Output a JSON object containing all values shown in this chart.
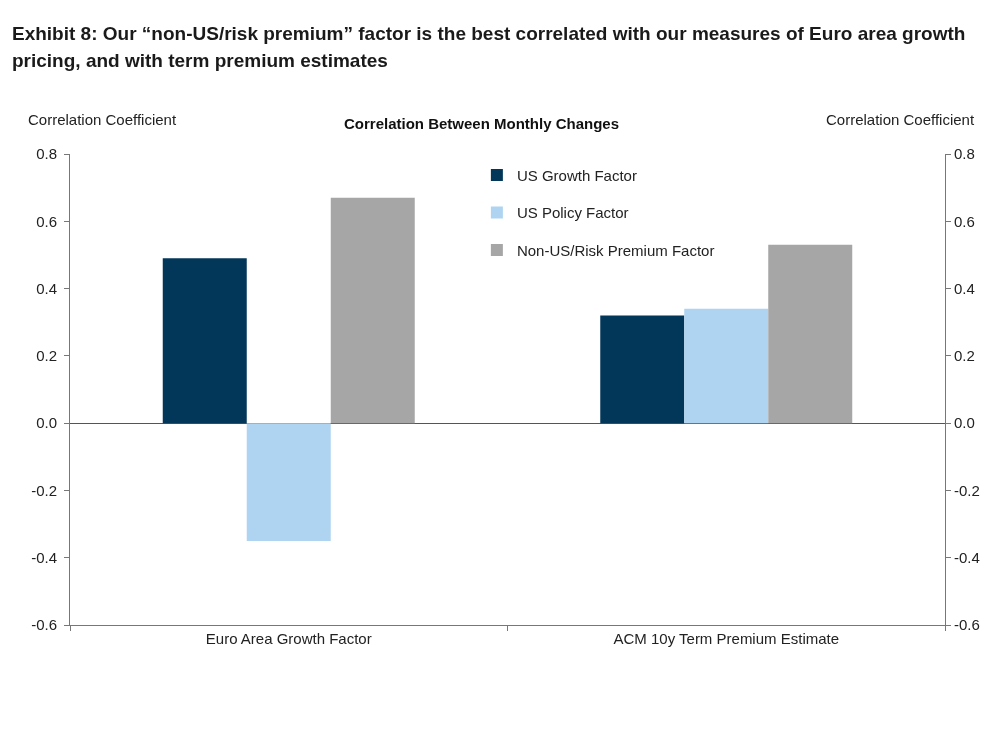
{
  "chart_data": {
    "type": "bar",
    "title": "Exhibit 8: Our “non-US/risk premium” factor is the best correlated with our measures of Euro area growth pricing, and with term premium estimates",
    "subtitle": "Correlation Between Monthly Changes",
    "ylabel": "Correlation Coefficient",
    "y2label": "Correlation Coefficient",
    "categories": [
      "Euro Area Growth Factor",
      "ACM 10y Term Premium Estimate"
    ],
    "series": [
      {
        "name": "US Growth Factor",
        "color": "#02375a",
        "values": [
          0.49,
          0.32
        ]
      },
      {
        "name": "US Policy Factor",
        "color": "#aed4f1",
        "values": [
          -0.35,
          0.34
        ]
      },
      {
        "name": "Non-US/Risk Premium Factor",
        "color": "#a6a6a6",
        "values": [
          0.67,
          0.53
        ]
      }
    ],
    "ylim": [
      -0.6,
      0.8
    ],
    "yticks": [
      -0.6,
      -0.4,
      -0.2,
      {
        "value": 0,
        "label": "0.0"
      },
      0.2,
      0.4,
      0.6,
      0.8
    ],
    "y2lim": [
      -0.6,
      0.8
    ],
    "y2ticks": [
      -0.6,
      -0.4,
      -0.2,
      {
        "value": 0,
        "label": "0.0"
      },
      0.2,
      0.4,
      0.6,
      0.8
    ],
    "legend": "top"
  }
}
